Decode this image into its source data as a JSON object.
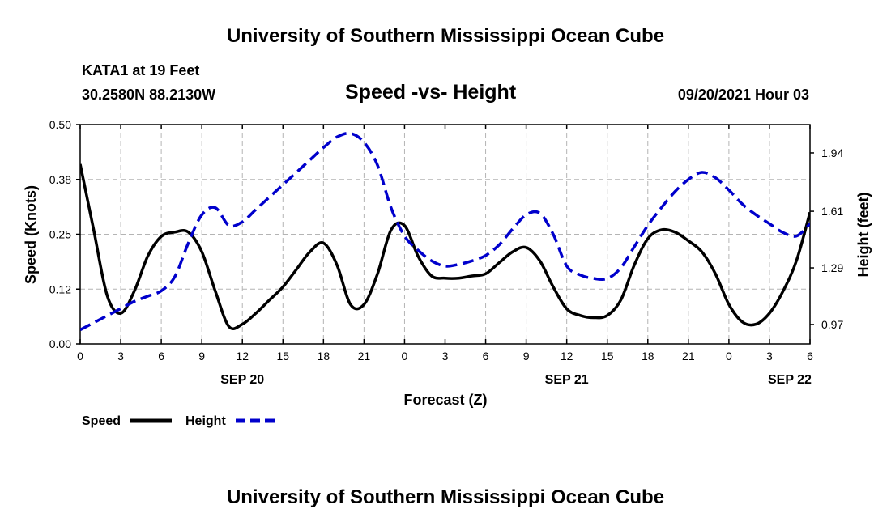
{
  "header": {
    "title": "University of Southern Mississippi Ocean Cube",
    "station": "KATA1 at 19 Feet",
    "location": "30.2580N  88.2130W",
    "plot_title": "Speed -vs- Height",
    "datetime": "09/20/2021 Hour 03"
  },
  "footer": {
    "title": "University of Southern Mississippi Ocean Cube"
  },
  "legend": {
    "speed_label": "Speed",
    "height_label": "Height"
  },
  "colors": {
    "speed": "#000000",
    "height": "#0000cc",
    "grid": "#b4b4b4"
  },
  "chart_data": {
    "type": "line",
    "title": "Speed -vs- Height",
    "xlabel": "Forecast (Z)",
    "ylabel": "Speed (Knots)",
    "y2label": "Height (feet)",
    "xlim": [
      0,
      54
    ],
    "ylim": [
      0,
      0.5
    ],
    "y2lim": [
      0.86,
      2.1
    ],
    "x_ticks": [
      0,
      3,
      6,
      9,
      12,
      15,
      18,
      21,
      24,
      27,
      30,
      33,
      36,
      39,
      42,
      45,
      48,
      51,
      54
    ],
    "x_tick_labels": [
      "0",
      "3",
      "6",
      "9",
      "12",
      "15",
      "18",
      "21",
      "0",
      "3",
      "6",
      "9",
      "12",
      "15",
      "18",
      "21",
      "0",
      "3",
      "6"
    ],
    "date_labels": [
      {
        "x": 12,
        "label": "SEP 20"
      },
      {
        "x": 36,
        "label": "SEP 21"
      },
      {
        "x": 52.5,
        "label": "SEP 22"
      }
    ],
    "y_ticks": [
      0,
      0.125,
      0.25,
      0.375,
      0.5
    ],
    "y_tick_labels": [
      "0.00",
      "0.12",
      "0.25",
      "0.38",
      "0.50"
    ],
    "y2_ticks": [
      0.97,
      1.29,
      1.61,
      1.94
    ],
    "y2_tick_labels": [
      "0.97",
      "1.29",
      "1.61",
      "1.94"
    ],
    "grid": true,
    "legend_position": "bottom-left",
    "series": [
      {
        "name": "Speed",
        "axis": "left",
        "style": "solid",
        "x": [
          0,
          1,
          2,
          3,
          4,
          5,
          6,
          7,
          8,
          9,
          10,
          11,
          12,
          13,
          14,
          15,
          16,
          17,
          18,
          19,
          20,
          21,
          22,
          23,
          24,
          25,
          26,
          27,
          28,
          29,
          30,
          31,
          32,
          33,
          34,
          35,
          36,
          37,
          38,
          39,
          40,
          41,
          42,
          43,
          44,
          45,
          46,
          47,
          48,
          49,
          50,
          51,
          52,
          53,
          54
        ],
        "values": [
          0.41,
          0.26,
          0.11,
          0.07,
          0.12,
          0.2,
          0.245,
          0.255,
          0.255,
          0.21,
          0.12,
          0.04,
          0.045,
          0.07,
          0.1,
          0.13,
          0.17,
          0.21,
          0.23,
          0.18,
          0.09,
          0.09,
          0.16,
          0.26,
          0.27,
          0.2,
          0.155,
          0.15,
          0.15,
          0.155,
          0.16,
          0.185,
          0.21,
          0.22,
          0.19,
          0.13,
          0.08,
          0.065,
          0.06,
          0.065,
          0.1,
          0.18,
          0.24,
          0.26,
          0.255,
          0.235,
          0.21,
          0.16,
          0.09,
          0.05,
          0.045,
          0.07,
          0.12,
          0.19,
          0.3
        ]
      },
      {
        "name": "Height",
        "axis": "right",
        "style": "dashed",
        "x": [
          0,
          1,
          2,
          3,
          4,
          5,
          6,
          7,
          8,
          9,
          10,
          11,
          12,
          13,
          14,
          15,
          16,
          17,
          18,
          19,
          20,
          21,
          22,
          23,
          24,
          25,
          26,
          27,
          28,
          29,
          30,
          31,
          32,
          33,
          34,
          35,
          36,
          37,
          38,
          39,
          40,
          41,
          42,
          43,
          44,
          45,
          46,
          47,
          48,
          49,
          50,
          51,
          52,
          53,
          54
        ],
        "values": [
          0.94,
          0.98,
          1.02,
          1.06,
          1.1,
          1.13,
          1.16,
          1.24,
          1.43,
          1.59,
          1.63,
          1.53,
          1.55,
          1.62,
          1.69,
          1.76,
          1.83,
          1.9,
          1.97,
          2.03,
          2.05,
          2.0,
          1.87,
          1.63,
          1.47,
          1.39,
          1.33,
          1.3,
          1.31,
          1.33,
          1.36,
          1.42,
          1.51,
          1.59,
          1.6,
          1.48,
          1.3,
          1.25,
          1.23,
          1.23,
          1.29,
          1.41,
          1.53,
          1.63,
          1.72,
          1.79,
          1.83,
          1.8,
          1.73,
          1.65,
          1.59,
          1.54,
          1.49,
          1.47,
          1.54
        ]
      }
    ]
  }
}
